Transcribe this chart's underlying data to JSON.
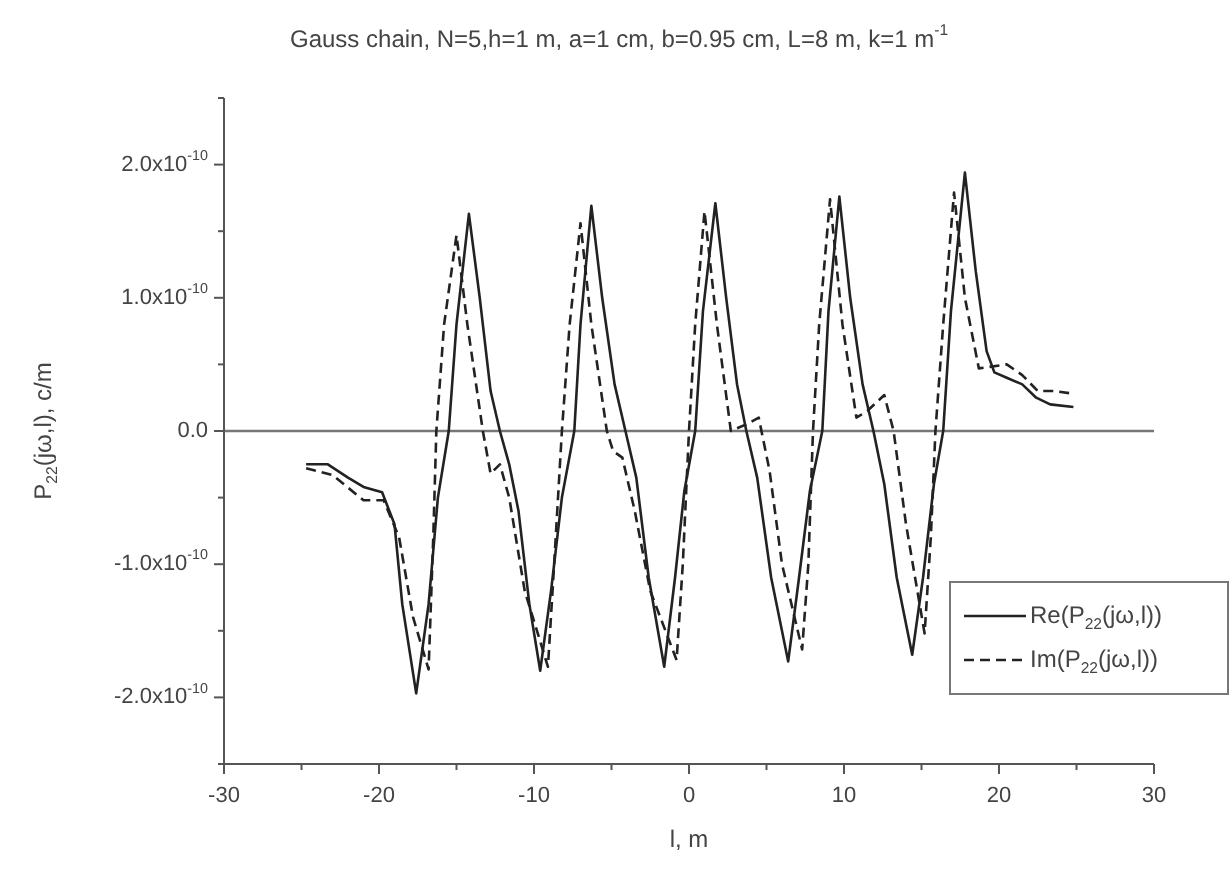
{
  "chart_data": {
    "type": "line",
    "title": "Gauss chain, N=5,h=1 m, a=1 cm, b=0.95 cm, L=8 m, k=1 m$^{-1}$",
    "xlabel": "l, m",
    "ylabel": "P$_{22}$(jω,l), c/m",
    "xlim": [
      -30,
      30
    ],
    "xticks": [
      -30,
      {
        "value": -25,
        "label": null
      },
      -20,
      {
        "value": -15,
        "label": null
      },
      -10,
      {
        "value": -5,
        "label": null
      },
      0,
      {
        "value": 5,
        "label": null
      },
      10,
      {
        "value": 15,
        "label": null
      },
      20,
      {
        "value": 25,
        "label": null
      },
      30
    ],
    "ylim": [
      -2.5e-10,
      2.5e-10
    ],
    "yticks": [
      {
        "value": -2.5e-10,
        "label": null
      },
      {
        "value": -2e-10,
        "label": "-2.0x10$^{-10}$"
      },
      {
        "value": -1.5e-10,
        "label": null
      },
      {
        "value": -1e-10,
        "label": "-1.0x10$^{-10}$"
      },
      {
        "value": -5e-11,
        "label": null
      },
      {
        "value": 0,
        "label": "0.0"
      },
      {
        "value": 5e-11,
        "label": null
      },
      {
        "value": 1e-10,
        "label": "1.0x10$^{-10}$"
      },
      {
        "value": 1.5e-10,
        "label": null
      },
      {
        "value": 2e-10,
        "label": "2.0x10$^{-10}$"
      },
      {
        "value": 2.5e-10,
        "label": null
      }
    ],
    "grid": false,
    "legend": "bottom right",
    "marker": "none",
    "ref_lines": [
      {
        "axis": "y",
        "value": 0,
        "label": null,
        "color": "#777777"
      }
    ],
    "series": [
      {
        "name": "Re(P$_{22}$(jω,l))",
        "color": "#222222",
        "line_style": "solid",
        "x": [
          -24.7,
          -23.3,
          -22.0,
          -21.0,
          -19.8,
          -19.0,
          -18.5,
          -17.6,
          -16.8,
          -16.2,
          -15.5,
          -15.0,
          -14.2,
          -13.5,
          -12.8,
          -12.2,
          -11.6,
          -11.0,
          -10.3,
          -9.6,
          -8.9,
          -8.2,
          -7.4,
          -7.0,
          -6.3,
          -5.6,
          -4.8,
          -4.1,
          -3.4,
          -2.6,
          -1.6,
          -0.9,
          -0.3,
          0.4,
          0.9,
          1.7,
          2.4,
          3.1,
          3.7,
          4.4,
          5.3,
          6.4,
          7.1,
          7.8,
          8.6,
          9.0,
          9.7,
          10.4,
          11.2,
          11.9,
          12.6,
          13.4,
          14.4,
          15.1,
          15.8,
          16.4,
          16.9,
          17.8,
          18.5,
          19.2,
          19.7,
          20.5,
          21.5,
          22.4,
          23.3,
          24.8
        ],
        "values": [
          -2.5e-11,
          -2.5e-11,
          -3.5e-11,
          -4.2e-11,
          -4.6e-11,
          -7e-11,
          -1.3e-10,
          -1.97e-10,
          -1.3e-10,
          -5e-11,
          0,
          8e-11,
          1.63e-10,
          1e-10,
          3e-11,
          0,
          -2.5e-11,
          -6e-11,
          -1.3e-10,
          -1.8e-10,
          -1.2e-10,
          -5e-11,
          0,
          8e-11,
          1.69e-10,
          1e-10,
          3.5e-11,
          0,
          -3.5e-11,
          -1.1e-10,
          -1.77e-10,
          -1.1e-10,
          -4.5e-11,
          0,
          9e-11,
          1.71e-10,
          1e-10,
          3.5e-11,
          0,
          -3.5e-11,
          -1.1e-10,
          -1.73e-10,
          -1.1e-10,
          -4.5e-11,
          0,
          9e-11,
          1.76e-10,
          1e-10,
          3.5e-11,
          0,
          -4e-11,
          -1.1e-10,
          -1.68e-10,
          -1.1e-10,
          -4e-11,
          0,
          9e-11,
          1.94e-10,
          1.2e-10,
          6e-11,
          4.4e-11,
          4e-11,
          3.5e-11,
          2.5e-11,
          2e-11,
          1.8e-11
        ]
      },
      {
        "name": "Im(P$_{22}$(jω,l))",
        "color": "#222222",
        "line_style": "dashed",
        "x": [
          -24.7,
          -23.0,
          -21.0,
          -19.7,
          -18.7,
          -17.8,
          -16.8,
          -16.5,
          -16.3,
          -15.8,
          -15.0,
          -14.3,
          -13.3,
          -12.8,
          -12.2,
          -11.6,
          -10.6,
          -9.1,
          -8.7,
          -8.2,
          -7.7,
          -7.0,
          -6.3,
          -5.3,
          -4.9,
          -4.3,
          -3.5,
          -2.5,
          -0.8,
          -0.4,
          0,
          0.4,
          1.0,
          1.8,
          2.7,
          3.7,
          4.5,
          5.2,
          6.0,
          7.3,
          7.7,
          8.0,
          8.4,
          9.1,
          9.9,
          10.8,
          11.5,
          12.6,
          13.2,
          14.0,
          15.2,
          15.6,
          15.9,
          16.4,
          17.1,
          17.8,
          18.7,
          20.5,
          21.5,
          22.5,
          23.5,
          24.8
        ],
        "values": [
          -2.8e-11,
          -3.3e-11,
          -5.2e-11,
          -5.2e-11,
          -8e-11,
          -1.4e-10,
          -1.79e-10,
          -8e-11,
          0,
          8e-11,
          1.47e-10,
          8e-11,
          0,
          -3.2e-11,
          -2.5e-11,
          -5e-11,
          -1.2e-10,
          -1.77e-10,
          -1e-10,
          0,
          8e-11,
          1.56e-10,
          8e-11,
          0,
          -1.5e-11,
          -2e-11,
          -6e-11,
          -1.2e-10,
          -1.72e-10,
          -1e-10,
          0,
          8e-11,
          1.65e-10,
          8e-11,
          0,
          5e-12,
          1e-11,
          -3e-11,
          -1e-10,
          -1.64e-10,
          -1e-10,
          0,
          8e-11,
          1.74e-10,
          8e-11,
          1e-11,
          1.5e-11,
          2.7e-11,
          0,
          -7e-11,
          -1.52e-10,
          -8e-11,
          0,
          8e-11,
          1.79e-10,
          1e-10,
          4.7e-11,
          5e-11,
          4.2e-11,
          3e-11,
          3e-11,
          2.8e-11
        ]
      }
    ]
  }
}
